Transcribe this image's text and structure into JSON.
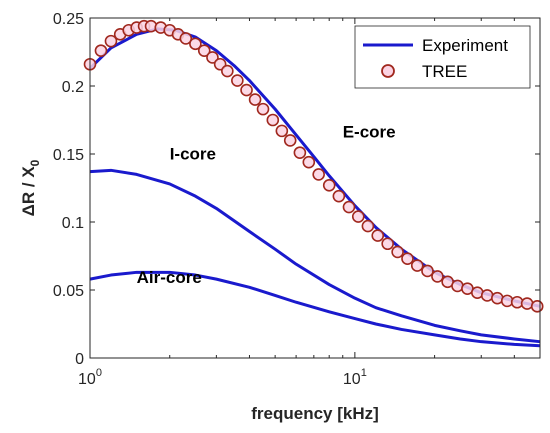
{
  "chart_data": {
    "type": "line",
    "xscale": "log",
    "xlim": [
      1,
      50
    ],
    "ylim": [
      0,
      0.25
    ],
    "xlabel": "frequency [kHz]",
    "ylabel": {
      "main": "ΔR / X",
      "sub": "0"
    },
    "xticks": [
      {
        "value": 1,
        "base": "10",
        "exp": "0"
      },
      {
        "value": 10,
        "base": "10",
        "exp": "1"
      }
    ],
    "yticks": [
      {
        "value": 0,
        "label": "0"
      },
      {
        "value": 0.05,
        "label": "0.05"
      },
      {
        "value": 0.1,
        "label": "0.1"
      },
      {
        "value": 0.15,
        "label": "0.15"
      },
      {
        "value": 0.2,
        "label": "0.2"
      },
      {
        "value": 0.25,
        "label": "0.25"
      }
    ],
    "grid": false,
    "legend": {
      "placement": "top-right",
      "entries": [
        {
          "label": "Experiment",
          "kind": "line",
          "color": "#1a1acd"
        },
        {
          "label": "TREE",
          "kind": "circle",
          "color": "#a0281e"
        }
      ]
    },
    "annotations": [
      {
        "text": "E-core",
        "x": 9.0,
        "y": 0.162
      },
      {
        "text": "I-core",
        "x": 2.0,
        "y": 0.146
      },
      {
        "text": "Air-core",
        "x": 1.5,
        "y": 0.055
      }
    ],
    "series": [
      {
        "name": "E-core Experiment",
        "kind": "line",
        "color": "#1a1acd",
        "x": [
          1.0,
          1.2,
          1.5,
          1.8,
          2.1,
          2.5,
          3.0,
          3.5,
          4.0,
          5.0,
          6.0,
          7.0,
          8.0,
          10.0,
          12.0,
          15.0,
          20.0,
          25.0,
          30.0,
          40.0,
          50.0
        ],
        "y": [
          0.213,
          0.228,
          0.238,
          0.242,
          0.241,
          0.236,
          0.226,
          0.215,
          0.204,
          0.183,
          0.164,
          0.148,
          0.134,
          0.112,
          0.096,
          0.08,
          0.063,
          0.054,
          0.048,
          0.042,
          0.038
        ]
      },
      {
        "name": "I-core",
        "kind": "line",
        "color": "#1a1acd",
        "x": [
          1.0,
          1.2,
          1.5,
          2.0,
          2.5,
          3.0,
          4.0,
          5.0,
          6.0,
          8.0,
          10.0,
          12.0,
          15.0,
          20.0,
          25.0,
          30.0,
          40.0,
          50.0
        ],
        "y": [
          0.137,
          0.138,
          0.135,
          0.128,
          0.119,
          0.11,
          0.093,
          0.08,
          0.069,
          0.054,
          0.044,
          0.037,
          0.031,
          0.024,
          0.02,
          0.017,
          0.014,
          0.012
        ]
      },
      {
        "name": "Air-core",
        "kind": "line",
        "color": "#1a1acd",
        "x": [
          1.0,
          1.2,
          1.5,
          1.8,
          2.0,
          2.5,
          3.0,
          4.0,
          5.0,
          6.0,
          8.0,
          10.0,
          12.0,
          15.0,
          20.0,
          25.0,
          30.0,
          40.0,
          50.0
        ],
        "y": [
          0.058,
          0.061,
          0.063,
          0.063,
          0.063,
          0.061,
          0.058,
          0.052,
          0.046,
          0.041,
          0.034,
          0.029,
          0.025,
          0.021,
          0.017,
          0.014,
          0.012,
          0.01,
          0.009
        ]
      },
      {
        "name": "E-core TREE",
        "kind": "scatter",
        "color": "#a0281e",
        "x": [
          1.0,
          1.1,
          1.2,
          1.3,
          1.4,
          1.5,
          1.6,
          1.7,
          1.85,
          2.0,
          2.15,
          2.3,
          2.5,
          2.7,
          2.9,
          3.1,
          3.3,
          3.6,
          3.9,
          4.2,
          4.5,
          4.9,
          5.3,
          5.7,
          6.2,
          6.7,
          7.3,
          8.0,
          8.7,
          9.5,
          10.3,
          11.2,
          12.2,
          13.3,
          14.5,
          15.8,
          17.2,
          18.8,
          20.5,
          22.4,
          24.4,
          26.6,
          29.0,
          31.6,
          34.5,
          37.6,
          41.0,
          44.7,
          48.8
        ],
        "y": [
          0.216,
          0.226,
          0.233,
          0.238,
          0.241,
          0.243,
          0.244,
          0.244,
          0.243,
          0.241,
          0.238,
          0.235,
          0.231,
          0.226,
          0.221,
          0.216,
          0.211,
          0.204,
          0.197,
          0.19,
          0.183,
          0.175,
          0.167,
          0.16,
          0.151,
          0.144,
          0.135,
          0.127,
          0.119,
          0.111,
          0.104,
          0.097,
          0.09,
          0.084,
          0.078,
          0.073,
          0.068,
          0.064,
          0.06,
          0.056,
          0.053,
          0.051,
          0.048,
          0.046,
          0.044,
          0.042,
          0.041,
          0.04,
          0.038
        ]
      }
    ]
  }
}
